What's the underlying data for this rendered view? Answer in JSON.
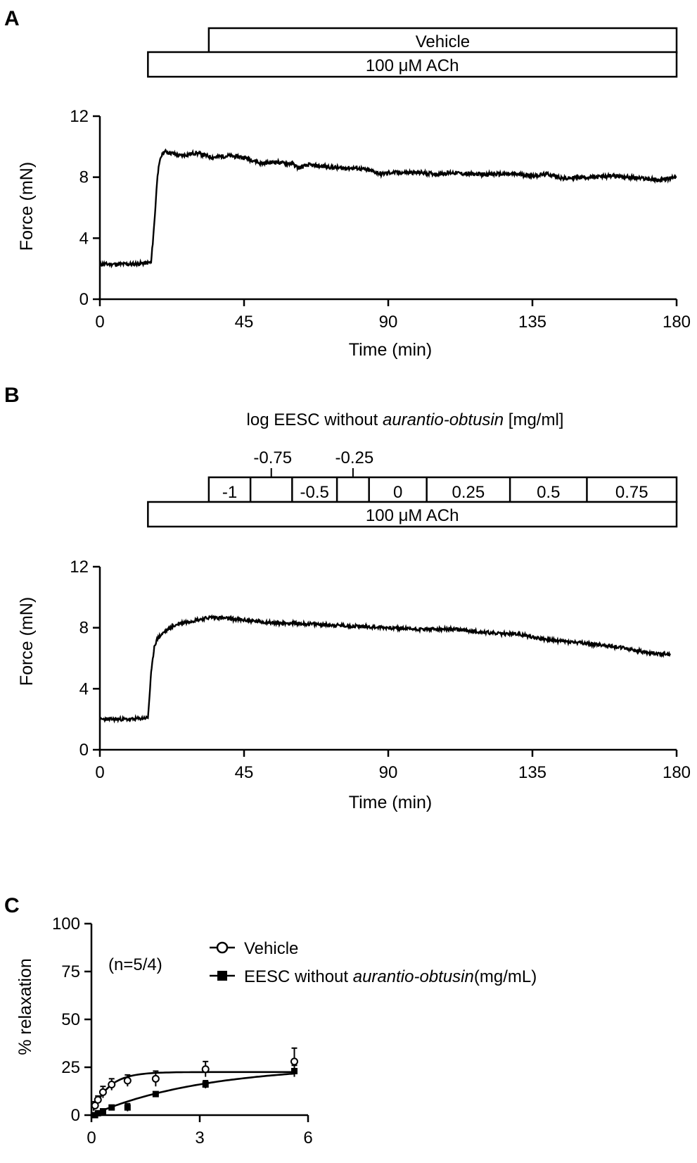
{
  "figure": {
    "panels": [
      "A",
      "B",
      "C"
    ]
  },
  "chart_data": [
    {
      "panel": "A",
      "type": "line",
      "xlabel": "Time (min)",
      "ylabel": "Force (mN)",
      "xlim": [
        0,
        180
      ],
      "ylim": [
        0,
        12
      ],
      "xticks": [
        0,
        45,
        90,
        135,
        180
      ],
      "yticks": [
        0,
        4,
        8,
        12
      ],
      "protocol_bars": [
        {
          "label": "Vehicle",
          "start": 34,
          "end": 180,
          "segments": []
        },
        {
          "label": "100 μM ACh",
          "start": 15,
          "end": 180,
          "segments": []
        }
      ],
      "series": [
        {
          "x": [
            0,
            5,
            10,
            16,
            17,
            18,
            19,
            20,
            22,
            25,
            28,
            30,
            35,
            40,
            45,
            48,
            50,
            55,
            58,
            60,
            62,
            65,
            70,
            75,
            80,
            85,
            88,
            90,
            95,
            100,
            105,
            110,
            115,
            120,
            125,
            130,
            135,
            140,
            145,
            150,
            155,
            160,
            165,
            170,
            175,
            180
          ],
          "y": [
            2.3,
            2.3,
            2.3,
            2.4,
            5.0,
            8.2,
            9.3,
            9.7,
            9.6,
            9.4,
            9.5,
            9.6,
            9.3,
            9.4,
            9.3,
            9.1,
            8.9,
            9.0,
            8.9,
            8.9,
            8.6,
            8.8,
            8.7,
            8.6,
            8.6,
            8.4,
            8.2,
            8.3,
            8.3,
            8.3,
            8.2,
            8.3,
            8.2,
            8.2,
            8.2,
            8.2,
            8.1,
            8.2,
            7.9,
            8.0,
            8.0,
            8.1,
            8.0,
            7.9,
            7.8,
            8.0
          ]
        }
      ]
    },
    {
      "panel": "B",
      "type": "line",
      "title": "log EESC without aurantio-obtusin [mg/ml]",
      "title_plain": "log EESC without ",
      "title_italic": "aurantio-obtusin",
      "title_suffix": " [mg/ml]",
      "xlabel": "Time (min)",
      "ylabel": "Force (mN)",
      "xlim": [
        0,
        180
      ],
      "ylim": [
        0,
        12
      ],
      "xticks": [
        0,
        45,
        90,
        135,
        180
      ],
      "yticks": [
        0,
        4,
        8,
        12
      ],
      "protocol_bars": [
        {
          "label": "",
          "start": 34,
          "end": 180,
          "segments": [
            {
              "label": "-1",
              "start": 34,
              "end": 47
            },
            {
              "label": "",
              "start": 47,
              "end": 60
            },
            {
              "label": "-0.5",
              "start": 60,
              "end": 74
            },
            {
              "label": "",
              "start": 74,
              "end": 84
            },
            {
              "label": "0",
              "start": 84,
              "end": 102
            },
            {
              "label": "0.25",
              "start": 102,
              "end": 128
            },
            {
              "label": "0.5",
              "start": 128,
              "end": 152
            },
            {
              "label": "0.75",
              "start": 152,
              "end": 180
            }
          ]
        },
        {
          "label": "100 μM ACh",
          "start": 15,
          "end": 180,
          "segments": []
        }
      ],
      "arrows": [
        {
          "label": "-0.75",
          "x": 53.5
        },
        {
          "label": "-0.25",
          "x": 79
        }
      ],
      "series": [
        {
          "x": [
            0,
            5,
            10,
            15,
            16,
            17,
            18,
            20,
            22,
            25,
            30,
            35,
            40,
            45,
            50,
            55,
            60,
            70,
            80,
            90,
            100,
            110,
            115,
            120,
            125,
            130,
            135,
            140,
            145,
            150,
            155,
            160,
            165,
            170,
            175,
            178
          ],
          "y": [
            2.0,
            2.0,
            2.0,
            2.1,
            5.0,
            6.8,
            7.3,
            7.7,
            8.0,
            8.3,
            8.5,
            8.7,
            8.6,
            8.5,
            8.4,
            8.3,
            8.3,
            8.2,
            8.1,
            8.0,
            7.9,
            7.9,
            7.8,
            7.7,
            7.6,
            7.6,
            7.4,
            7.2,
            7.1,
            7.0,
            6.9,
            6.8,
            6.6,
            6.4,
            6.3,
            6.3
          ]
        }
      ]
    },
    {
      "panel": "C",
      "type": "scatter",
      "xlabel": "",
      "ylabel": "% relaxation",
      "xlim": [
        0,
        6
      ],
      "ylim": [
        0,
        100
      ],
      "xticks": [
        0,
        3,
        6
      ],
      "yticks": [
        0,
        25,
        50,
        75,
        100
      ],
      "annotation": "(n=5/4)",
      "legend_location": "top-right",
      "series": [
        {
          "name": "Vehicle",
          "name_plain": "Vehicle",
          "name_italic": "",
          "name_suffix": "",
          "marker": "open-circle",
          "x": [
            0.1,
            0.18,
            0.32,
            0.56,
            1.0,
            1.78,
            3.16,
            5.62
          ],
          "y": [
            5,
            8,
            12,
            16,
            18,
            19,
            24,
            28
          ],
          "err": [
            2,
            2,
            3,
            3,
            3,
            4,
            4,
            7
          ],
          "fit": {
            "ymax": 22.5,
            "k": 2.2
          }
        },
        {
          "name": "EESC without aurantio-obtusin(mg/mL)",
          "name_plain": "EESC without ",
          "name_italic": "aurantio-obtusin",
          "name_suffix": "(mg/mL)",
          "marker": "filled-square",
          "x": [
            0.1,
            0.18,
            0.32,
            0.56,
            1.0,
            1.78,
            3.16,
            5.62
          ],
          "y": [
            0,
            1,
            2,
            4,
            4,
            11,
            16,
            23
          ],
          "err": [
            1,
            1,
            1,
            1,
            2,
            1,
            2,
            3
          ],
          "fit": {
            "ymax": 26,
            "k": 0.32
          }
        }
      ]
    }
  ]
}
